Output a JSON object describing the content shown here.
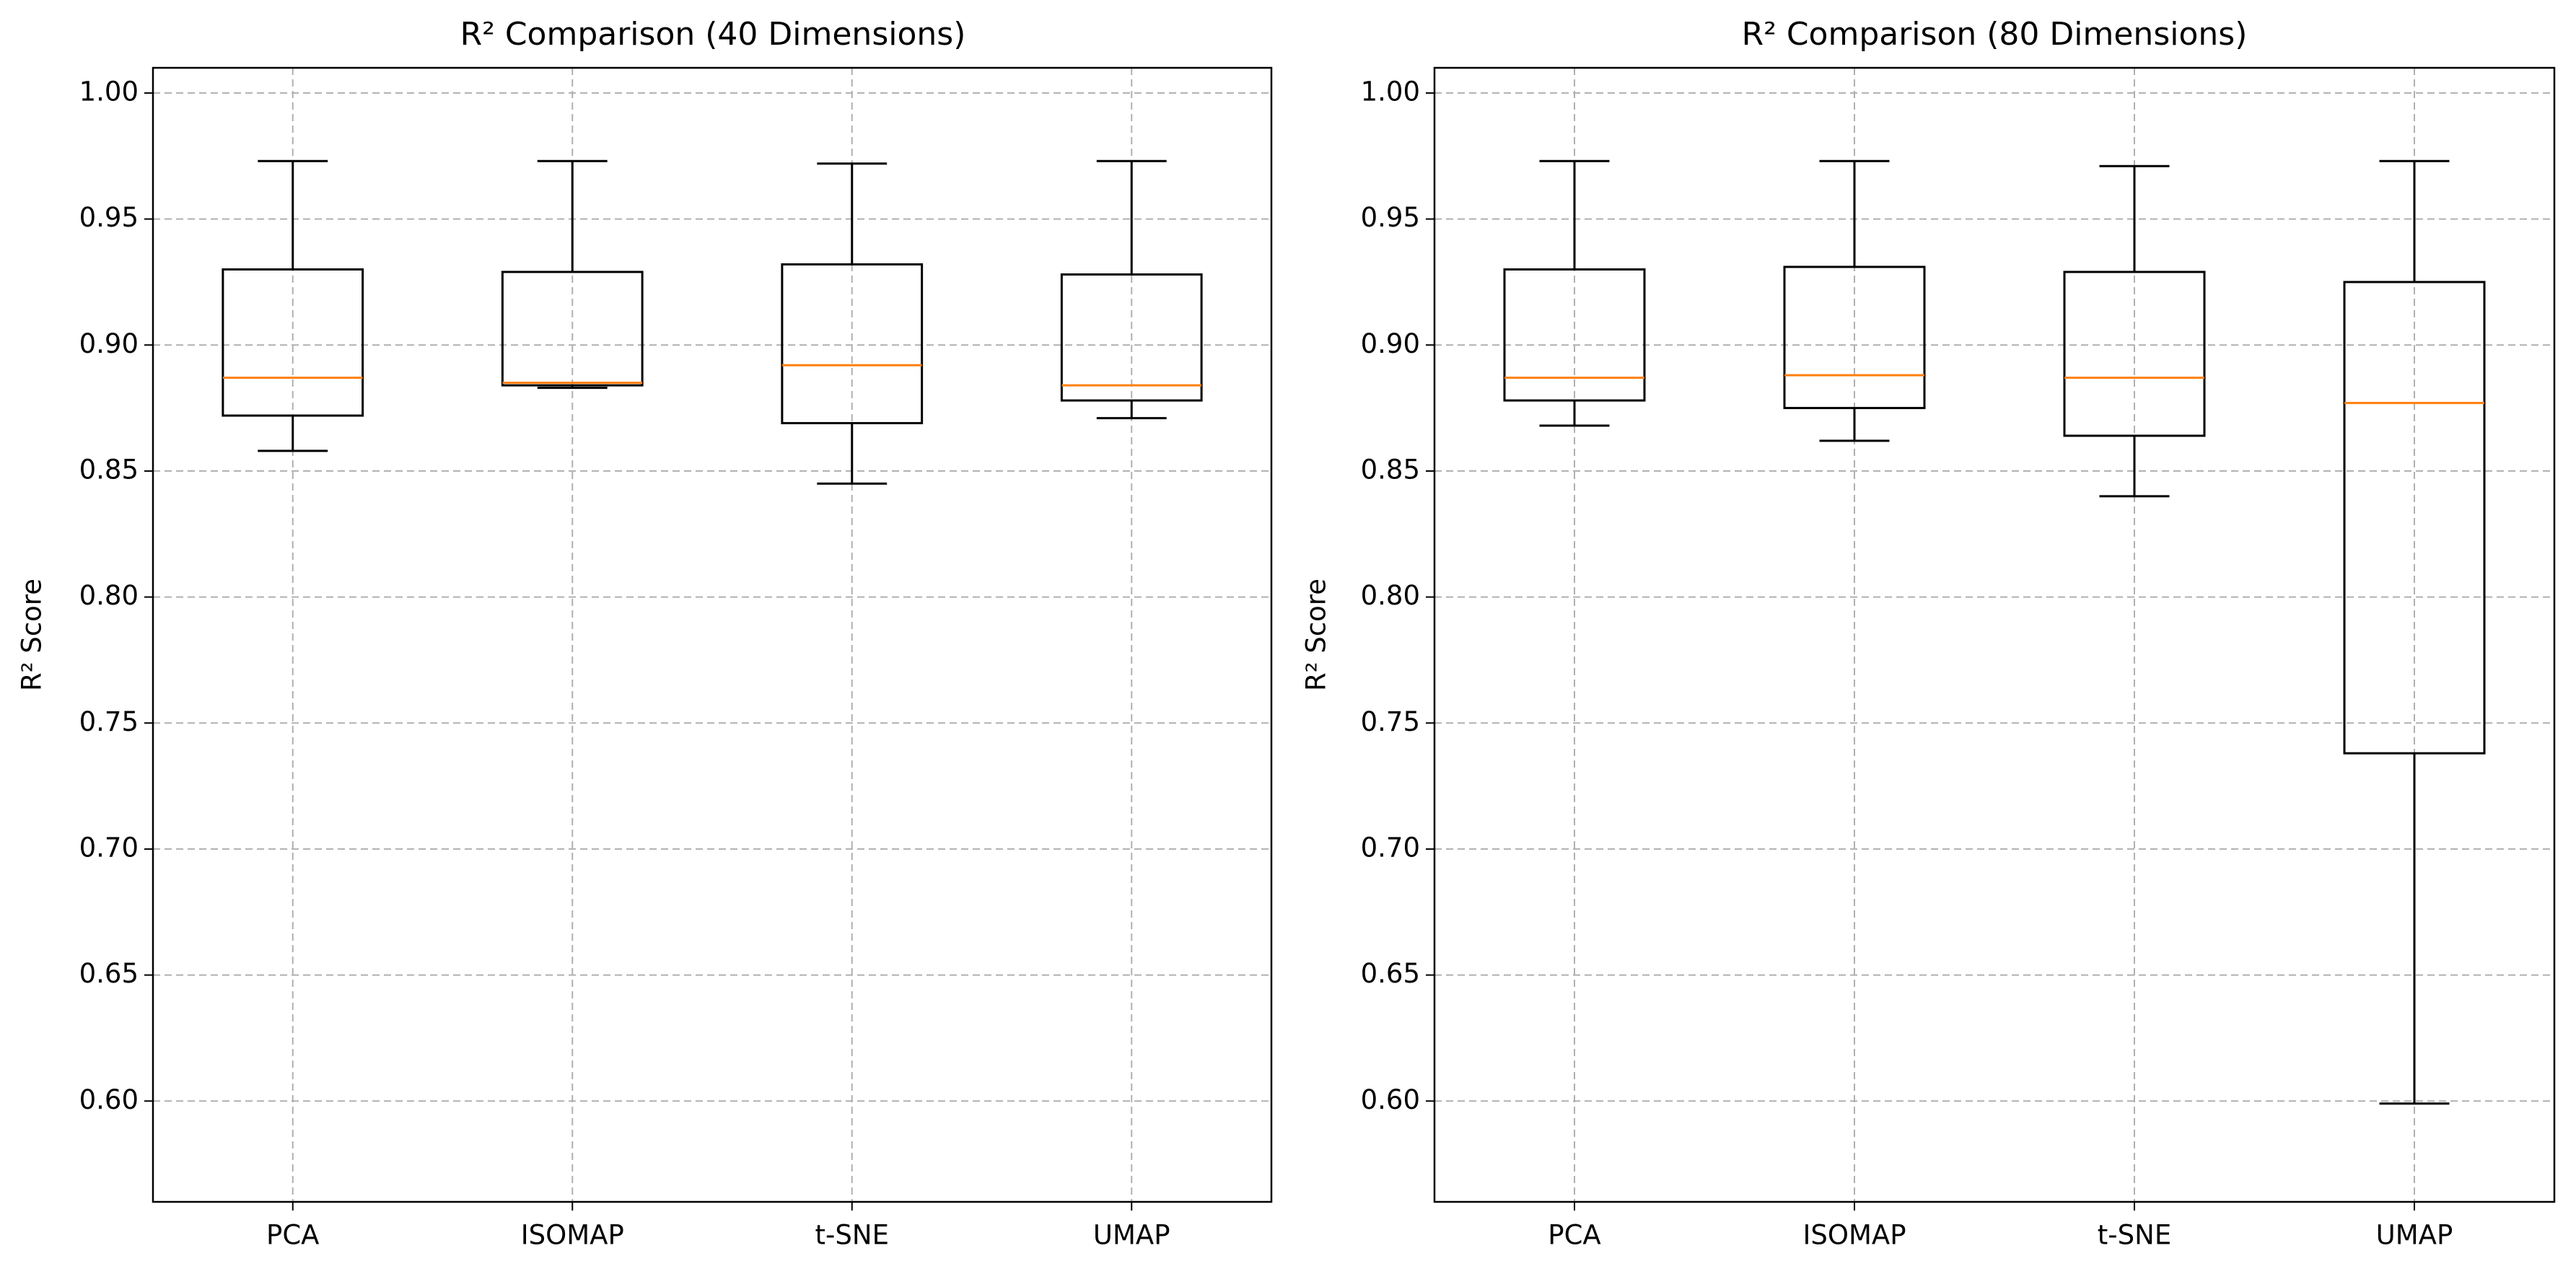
{
  "chart_data": [
    {
      "type": "box",
      "title": "R² Comparison (40 Dimensions)",
      "xlabel": "",
      "ylabel": "R² Score",
      "categories": [
        "PCA",
        "ISOMAP",
        "t-SNE",
        "UMAP"
      ],
      "boxes": [
        {
          "category": "PCA",
          "whisker_low": 0.858,
          "q1": 0.872,
          "median": 0.887,
          "q3": 0.93,
          "whisker_high": 0.973
        },
        {
          "category": "ISOMAP",
          "whisker_low": 0.883,
          "q1": 0.884,
          "median": 0.885,
          "q3": 0.929,
          "whisker_high": 0.973
        },
        {
          "category": "t-SNE",
          "whisker_low": 0.845,
          "q1": 0.869,
          "median": 0.892,
          "q3": 0.932,
          "whisker_high": 0.972
        },
        {
          "category": "UMAP",
          "whisker_low": 0.871,
          "q1": 0.878,
          "median": 0.884,
          "q3": 0.928,
          "whisker_high": 0.973
        }
      ],
      "ylim": [
        0.56,
        1.01
      ],
      "yticks": [
        0.6,
        0.65,
        0.7,
        0.75,
        0.8,
        0.85,
        0.9,
        0.95,
        1.0
      ],
      "ytick_labels": [
        "0.60",
        "0.65",
        "0.70",
        "0.75",
        "0.80",
        "0.85",
        "0.90",
        "0.95",
        "1.00"
      ],
      "grid": true,
      "legend": "none"
    },
    {
      "type": "box",
      "title": "R² Comparison (80 Dimensions)",
      "xlabel": "",
      "ylabel": "R² Score",
      "categories": [
        "PCA",
        "ISOMAP",
        "t-SNE",
        "UMAP"
      ],
      "boxes": [
        {
          "category": "PCA",
          "whisker_low": 0.868,
          "q1": 0.878,
          "median": 0.887,
          "q3": 0.93,
          "whisker_high": 0.973
        },
        {
          "category": "ISOMAP",
          "whisker_low": 0.862,
          "q1": 0.875,
          "median": 0.888,
          "q3": 0.931,
          "whisker_high": 0.973
        },
        {
          "category": "t-SNE",
          "whisker_low": 0.84,
          "q1": 0.864,
          "median": 0.887,
          "q3": 0.929,
          "whisker_high": 0.971
        },
        {
          "category": "UMAP",
          "whisker_low": 0.599,
          "q1": 0.738,
          "median": 0.877,
          "q3": 0.925,
          "whisker_high": 0.973
        }
      ],
      "ylim": [
        0.56,
        1.01
      ],
      "yticks": [
        0.6,
        0.65,
        0.7,
        0.75,
        0.8,
        0.85,
        0.9,
        0.95,
        1.0
      ],
      "ytick_labels": [
        "0.60",
        "0.65",
        "0.70",
        "0.75",
        "0.80",
        "0.85",
        "0.90",
        "0.95",
        "1.00"
      ],
      "grid": true,
      "legend": "none"
    }
  ],
  "colors": {
    "box": "#000000",
    "median": "#ff7f0e",
    "grid": "#b0b0b0"
  }
}
